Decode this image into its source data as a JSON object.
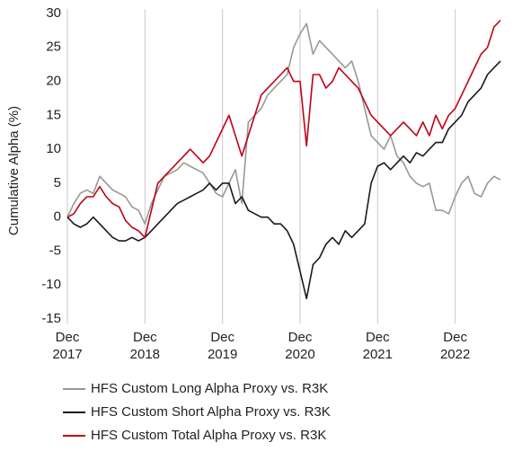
{
  "chart_data": {
    "type": "line",
    "ylabel": "Cumulative Alpha (%)",
    "x": [
      "2017-12",
      "2018-01",
      "2018-02",
      "2018-03",
      "2018-04",
      "2018-05",
      "2018-06",
      "2018-07",
      "2018-08",
      "2018-09",
      "2018-10",
      "2018-11",
      "2018-12",
      "2019-01",
      "2019-02",
      "2019-03",
      "2019-04",
      "2019-05",
      "2019-06",
      "2019-07",
      "2019-08",
      "2019-09",
      "2019-10",
      "2019-11",
      "2019-12",
      "2020-01",
      "2020-02",
      "2020-03",
      "2020-04",
      "2020-05",
      "2020-06",
      "2020-07",
      "2020-08",
      "2020-09",
      "2020-10",
      "2020-11",
      "2020-12",
      "2021-01",
      "2021-02",
      "2021-03",
      "2021-04",
      "2021-05",
      "2021-06",
      "2021-07",
      "2021-08",
      "2021-09",
      "2021-10",
      "2021-11",
      "2021-12",
      "2022-01",
      "2022-02",
      "2022-03",
      "2022-04",
      "2022-05",
      "2022-06",
      "2022-07",
      "2022-08",
      "2022-09",
      "2022-10",
      "2022-11",
      "2022-12",
      "2023-01",
      "2023-02",
      "2023-03",
      "2023-04",
      "2023-05",
      "2023-06",
      "2023-07"
    ],
    "series": [
      {
        "name": "HFS Custom Long Alpha Proxy vs. R3K",
        "color": "#9a9892",
        "values": [
          0,
          2,
          3.5,
          4,
          3.5,
          6,
          5,
          4,
          3.5,
          3,
          1.5,
          1,
          -1,
          2,
          4,
          6,
          6.5,
          7,
          8,
          7.5,
          7,
          6.5,
          5,
          3.5,
          3,
          5,
          7,
          2,
          14,
          15,
          16,
          18,
          19,
          20,
          21,
          25,
          27,
          28.5,
          24,
          26,
          25,
          24,
          23,
          22,
          23,
          20,
          16,
          12,
          11,
          10,
          12,
          9,
          8,
          6,
          5,
          4.5,
          5,
          1,
          1,
          0.5,
          3,
          5,
          6,
          3.5,
          3,
          5,
          6,
          5.5
        ]
      },
      {
        "name": "HFS Custom Short Alpha Proxy vs. R3K",
        "color": "#1a1a1a",
        "values": [
          0,
          -1,
          -1.5,
          -1,
          0,
          -1,
          -2,
          -3,
          -3.5,
          -3.5,
          -3,
          -3.5,
          -3,
          -2,
          -1,
          0,
          1,
          2,
          2.5,
          3,
          3.5,
          4,
          5,
          4,
          5,
          5,
          2,
          3,
          1,
          0.5,
          0,
          0,
          -1,
          -1,
          -2,
          -4,
          -8,
          -12,
          -7,
          -6,
          -4,
          -3,
          -4,
          -2,
          -3,
          -2,
          -1,
          5,
          7.5,
          8,
          7,
          8,
          9,
          8,
          9.5,
          9,
          10,
          11,
          11,
          13,
          14,
          15,
          17,
          18,
          19,
          21,
          22,
          23
        ]
      },
      {
        "name": "HFS Custom Total Alpha Proxy vs. R3K",
        "color": "#c00018",
        "values": [
          0,
          0.5,
          2,
          3,
          3,
          4.5,
          3,
          2,
          1.5,
          -0.5,
          -1.5,
          -2,
          -3,
          1,
          5,
          6,
          7,
          8,
          9,
          10,
          9,
          8,
          9,
          11,
          13,
          15,
          12,
          9,
          12,
          15,
          18,
          19,
          20,
          21,
          22,
          20,
          20,
          10.5,
          21,
          21,
          19,
          20,
          22,
          21,
          20,
          19,
          17,
          15,
          14,
          13,
          12,
          13,
          14,
          13,
          12,
          14,
          12,
          15,
          13,
          15,
          16,
          18,
          20,
          22,
          24,
          25,
          28,
          29
        ]
      }
    ],
    "xlim": [
      "2017-12",
      "2023-07"
    ],
    "xticks": [
      {
        "value": "2017-12",
        "label": "Dec 2017"
      },
      {
        "value": "2018-12",
        "label": "Dec 2018"
      },
      {
        "value": "2019-12",
        "label": "Dec 2019"
      },
      {
        "value": "2020-12",
        "label": "Dec 2020"
      },
      {
        "value": "2021-12",
        "label": "Dec 2021"
      },
      {
        "value": "2022-12",
        "label": "Dec 2022"
      }
    ],
    "ylim": [
      -15,
      30
    ],
    "yticks": [
      -15,
      -10,
      -5,
      0,
      5,
      10,
      15,
      20,
      25,
      30
    ],
    "grid": "x",
    "legend": "bottom"
  }
}
